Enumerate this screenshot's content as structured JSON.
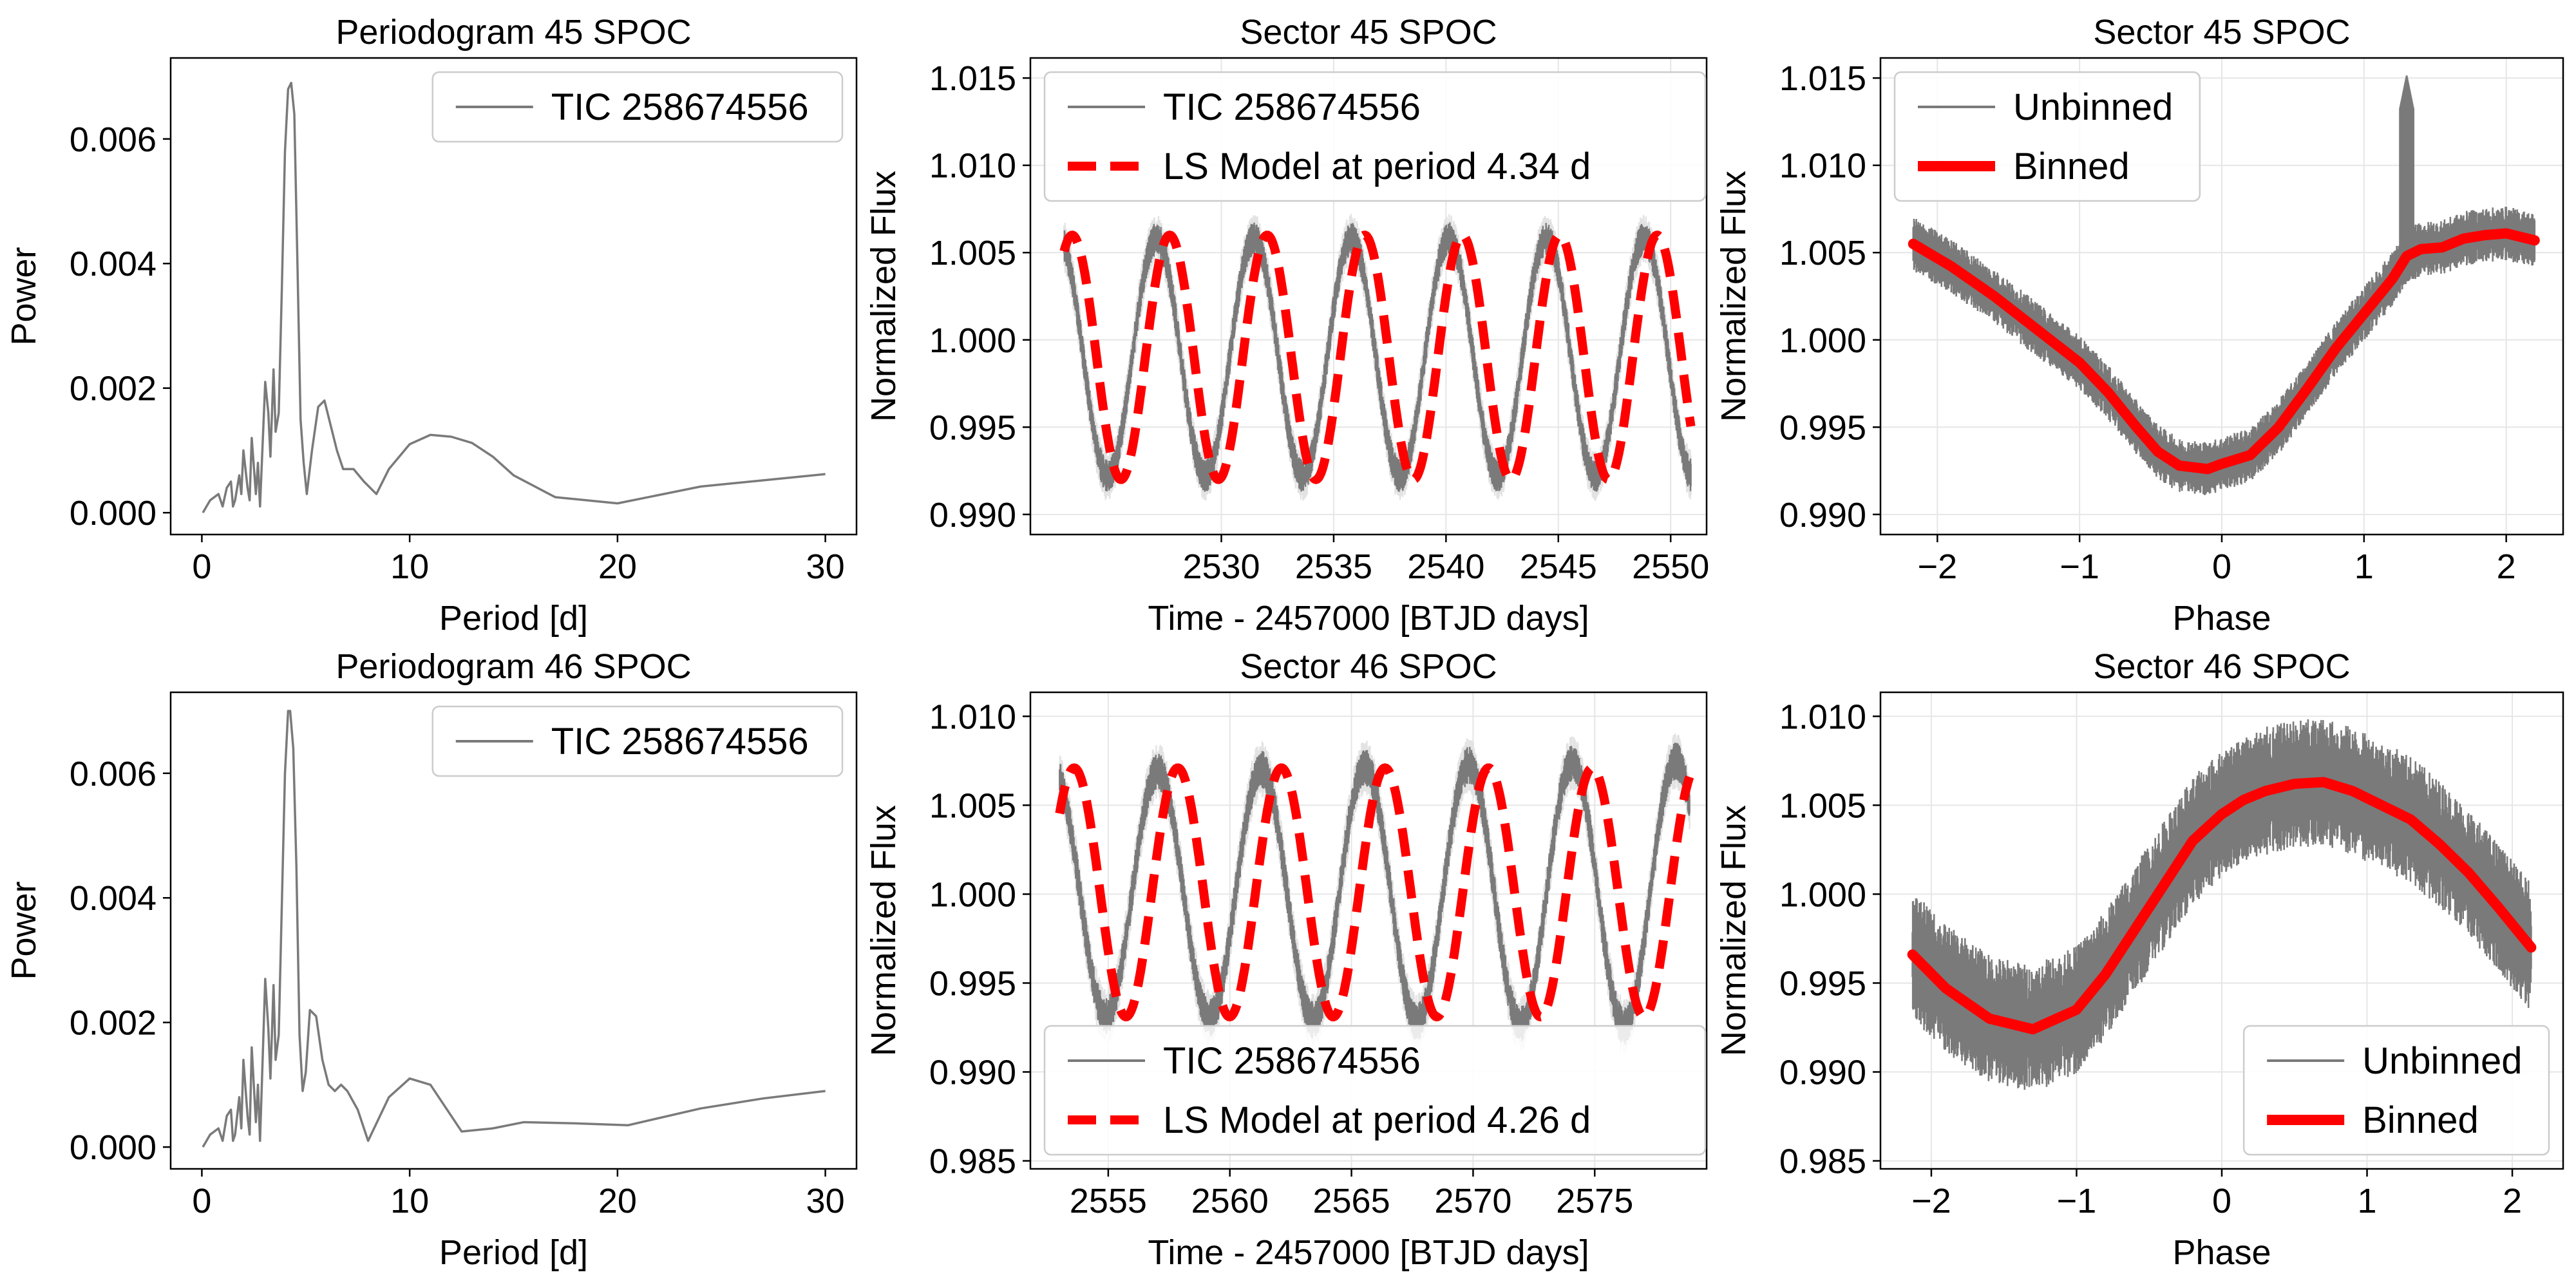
{
  "figure": {
    "title_note": "",
    "colors": {
      "curve": "#7a7a7a",
      "model": "#ff0000",
      "grid": "#e6e6e6",
      "axis": "#000000",
      "legend_border": "#cccccc"
    }
  },
  "chart_data": [
    {
      "id": "p1",
      "type": "line",
      "title": "Periodogram 45 SPOC",
      "xlabel": "Period [d]",
      "ylabel": "Power",
      "xlim": [
        -1.5,
        31.5
      ],
      "ylim": [
        -0.00035,
        0.0073
      ],
      "xticks": [
        0,
        10,
        20,
        30
      ],
      "yticks": [
        0.0,
        0.002,
        0.004,
        0.006
      ],
      "ytick_decimals": 3,
      "grid": false,
      "legend": {
        "position": "top-right",
        "entries": [
          {
            "label": "TIC 258674556",
            "style": "gray-thin"
          }
        ]
      },
      "series": [
        {
          "name": "TIC 258674556",
          "style": "gray-thin",
          "periodogram": {
            "peak_period": 4.34,
            "peak_power": 0.0069,
            "noise": 0.0002,
            "features": [
              [
                1.4,
                0.00045
              ],
              [
                1.8,
                0.0005
              ],
              [
                2.2,
                0.001
              ],
              [
                2.6,
                0.0012
              ],
              [
                3.05,
                0.0021
              ],
              [
                3.45,
                0.0023
              ],
              [
                3.75,
                0.0016
              ],
              [
                5.9,
                0.0018
              ],
              [
                7.3,
                0.0007
              ],
              [
                11.5,
                0.00125
              ],
              [
                12.5,
                0.0012
              ]
            ],
            "x": [
              0.05,
              0.4,
              0.8,
              1.0,
              1.2,
              1.4,
              1.5,
              1.6,
              1.8,
              1.9,
              2.0,
              2.2,
              2.3,
              2.4,
              2.6,
              2.7,
              2.8,
              3.05,
              3.2,
              3.3,
              3.45,
              3.55,
              3.7,
              3.85,
              4.0,
              4.15,
              4.3,
              4.45,
              4.6,
              4.75,
              4.9,
              5.05,
              5.3,
              5.6,
              5.9,
              6.2,
              6.5,
              6.8,
              7.3,
              7.8,
              8.4,
              9.0,
              10.0,
              11.0,
              12.0,
              13.0,
              14.0,
              15.0,
              17.0,
              20.0,
              24.0,
              27.0,
              30.0
            ],
            "y": [
              0.0,
              0.0002,
              0.0003,
              0.0001,
              0.0004,
              0.0005,
              0.0001,
              0.0002,
              0.0006,
              0.0003,
              0.001,
              0.0004,
              0.0002,
              0.0012,
              0.0003,
              0.0008,
              0.0001,
              0.0021,
              0.0016,
              0.0009,
              0.0023,
              0.0013,
              0.0016,
              0.0036,
              0.0058,
              0.0068,
              0.0069,
              0.0064,
              0.004,
              0.0015,
              0.0008,
              0.0003,
              0.001,
              0.0017,
              0.0018,
              0.0014,
              0.001,
              0.0007,
              0.0007,
              0.0005,
              0.0003,
              0.0007,
              0.0011,
              0.00125,
              0.00122,
              0.00112,
              0.0009,
              0.0006,
              0.00025,
              0.00015,
              0.00042,
              0.00052,
              0.00062
            ]
          }
        }
      ]
    },
    {
      "id": "p2",
      "type": "line",
      "title": "Sector 45 SPOC",
      "xlabel": "Time - 2457000 [BTJD days]",
      "ylabel": "Normalized Flux",
      "xlim": [
        2521.5,
        2551.6
      ],
      "ylim": [
        0.98885,
        1.01615
      ],
      "xticks": [
        2530,
        2535,
        2540,
        2545,
        2550
      ],
      "yticks": [
        0.99,
        0.995,
        1.0,
        1.005,
        1.01,
        1.015
      ],
      "ytick_decimals": 3,
      "grid": true,
      "legend": {
        "position": "top-left",
        "entries": [
          {
            "label": "TIC 258674556",
            "style": "gray-thin"
          },
          {
            "label": "LS Model at period 4.34 d",
            "style": "red-dashed"
          }
        ]
      },
      "series": [
        {
          "name": "TIC 258674556",
          "style": "gray-band",
          "band": {
            "x_start": 2523.0,
            "x_end": 2550.9,
            "period": 4.34,
            "center": 0.999,
            "amplitude": 0.0068,
            "noise": 0.0009
          }
        },
        {
          "name": "LS Model at period 4.34 d",
          "style": "red-dashed",
          "model": {
            "x_start": 2523.0,
            "x_end": 2550.9,
            "period": 4.34,
            "center": 0.999,
            "amplitude": 0.007,
            "first_peak": 2527.7
          }
        }
      ]
    },
    {
      "id": "p3",
      "type": "line",
      "title": "Sector 45 SPOC",
      "xlabel": "Phase",
      "ylabel": "Normalized Flux",
      "xlim": [
        -2.4,
        2.4
      ],
      "ylim": [
        0.98885,
        1.01615
      ],
      "xticks": [
        -2,
        -1,
        0,
        1,
        2
      ],
      "yticks": [
        0.99,
        0.995,
        1.0,
        1.005,
        1.01,
        1.015
      ],
      "ytick_decimals": 3,
      "grid": true,
      "legend": {
        "position": "top-left",
        "entries": [
          {
            "label": "Unbinned",
            "style": "gray-thin"
          },
          {
            "label": "Binned",
            "style": "red-thick"
          }
        ]
      },
      "series": [
        {
          "name": "Unbinned",
          "style": "gray-band",
          "binned_ref": true,
          "noise": 0.0013,
          "spike_at": 1.3,
          "spike_to": 1.0152
        },
        {
          "name": "Binned",
          "style": "red-thick",
          "x": [
            -2.17,
            -1.9,
            -1.6,
            -1.3,
            -1.0,
            -0.8,
            -0.6,
            -0.45,
            -0.3,
            -0.1,
            0.0,
            0.2,
            0.4,
            0.6,
            0.8,
            1.0,
            1.2,
            1.3,
            1.4,
            1.55,
            1.7,
            1.85,
            2.0,
            2.2
          ],
          "y": [
            1.0055,
            1.0042,
            1.0025,
            1.0006,
            0.9987,
            0.997,
            0.995,
            0.9936,
            0.9928,
            0.9926,
            0.9929,
            0.9934,
            0.995,
            0.9972,
            0.9995,
            1.0015,
            1.0035,
            1.0048,
            1.0052,
            1.0053,
            1.0058,
            1.006,
            1.0061,
            1.0057
          ]
        }
      ]
    },
    {
      "id": "p4",
      "type": "line",
      "title": "Periodogram 46 SPOC",
      "xlabel": "Period [d]",
      "ylabel": "Power",
      "xlim": [
        -1.5,
        31.5
      ],
      "ylim": [
        -0.00035,
        0.0073
      ],
      "xticks": [
        0,
        10,
        20,
        30
      ],
      "yticks": [
        0.0,
        0.002,
        0.004,
        0.006
      ],
      "ytick_decimals": 3,
      "grid": false,
      "legend": {
        "position": "top-right",
        "entries": [
          {
            "label": "TIC 258674556",
            "style": "gray-thin"
          }
        ]
      },
      "series": [
        {
          "name": "TIC 258674556",
          "style": "gray-thin",
          "periodogram": {
            "x": [
              0.05,
              0.4,
              0.8,
              1.0,
              1.2,
              1.4,
              1.5,
              1.6,
              1.8,
              1.9,
              2.0,
              2.2,
              2.3,
              2.4,
              2.6,
              2.7,
              2.8,
              3.05,
              3.2,
              3.3,
              3.45,
              3.55,
              3.7,
              3.85,
              4.0,
              4.15,
              4.25,
              4.4,
              4.55,
              4.7,
              4.85,
              5.0,
              5.2,
              5.5,
              5.8,
              6.1,
              6.4,
              6.7,
              7.0,
              7.5,
              8.0,
              9.0,
              10.0,
              11.0,
              12.5,
              14.0,
              15.5,
              18.0,
              20.5,
              24.0,
              27.0,
              30.0
            ],
            "y": [
              0.0,
              0.0002,
              0.0003,
              0.0001,
              0.0005,
              0.0006,
              0.0001,
              0.0002,
              0.0008,
              0.0003,
              0.0014,
              0.0005,
              0.0002,
              0.0016,
              0.0004,
              0.001,
              0.0001,
              0.0027,
              0.0019,
              0.0011,
              0.0026,
              0.0014,
              0.0018,
              0.0039,
              0.006,
              0.007,
              0.007,
              0.0064,
              0.0045,
              0.0018,
              0.0009,
              0.0012,
              0.0022,
              0.0021,
              0.0014,
              0.001,
              0.0009,
              0.001,
              0.0009,
              0.0006,
              0.0001,
              0.0008,
              0.0011,
              0.001,
              0.00025,
              0.0003,
              0.0004,
              0.00038,
              0.00035,
              0.00062,
              0.00078,
              0.0009
            ]
          }
        }
      ]
    },
    {
      "id": "p5",
      "type": "line",
      "title": "Sector 46 SPOC",
      "xlabel": "Time - 2457000 [BTJD days]",
      "ylabel": "Normalized Flux",
      "xlim": [
        2551.8,
        2579.6
      ],
      "ylim": [
        0.98455,
        1.01135
      ],
      "xticks": [
        2555,
        2560,
        2565,
        2570,
        2575
      ],
      "yticks": [
        0.985,
        0.99,
        0.995,
        1.0,
        1.005,
        1.01
      ],
      "ytick_decimals": 3,
      "grid": true,
      "legend": {
        "position": "bottom-left",
        "entries": [
          {
            "label": "TIC 258674556",
            "style": "gray-thin"
          },
          {
            "label": "LS Model at period 4.26 d",
            "style": "red-dashed"
          }
        ]
      },
      "series": [
        {
          "name": "TIC 258674556",
          "style": "gray-band",
          "band": {
            "x_start": 2553.0,
            "x_end": 2578.9,
            "period": 4.26,
            "center": 1.0,
            "amplitude": 0.0068,
            "noise": 0.001,
            "growth": 0.0007
          }
        },
        {
          "name": "LS Model at period 4.26 d",
          "style": "red-dashed",
          "model": {
            "x_start": 2553.0,
            "x_end": 2578.9,
            "period": 4.26,
            "center": 1.0001,
            "amplitude": 0.007,
            "first_peak": 2553.6
          }
        }
      ]
    },
    {
      "id": "p6",
      "type": "line",
      "title": "Sector 46 SPOC",
      "xlabel": "Phase",
      "ylabel": "Normalized Flux",
      "xlim": [
        -2.35,
        2.35
      ],
      "ylim": [
        0.98455,
        1.01135
      ],
      "xticks": [
        -2,
        -1,
        0,
        1,
        2
      ],
      "yticks": [
        0.985,
        0.99,
        0.995,
        1.0,
        1.005,
        1.01
      ],
      "ytick_decimals": 3,
      "grid": true,
      "legend": {
        "position": "bottom-right",
        "entries": [
          {
            "label": "Unbinned",
            "style": "gray-thin"
          },
          {
            "label": "Binned",
            "style": "red-thick"
          }
        ]
      },
      "series": [
        {
          "name": "Unbinned",
          "style": "gray-band",
          "binned_ref": true,
          "noise": 0.003
        },
        {
          "name": "Binned",
          "style": "red-thick",
          "x": [
            -2.13,
            -1.9,
            -1.6,
            -1.3,
            -1.0,
            -0.8,
            -0.6,
            -0.4,
            -0.2,
            0.0,
            0.15,
            0.3,
            0.5,
            0.7,
            0.9,
            1.1,
            1.3,
            1.5,
            1.7,
            1.9,
            2.13
          ],
          "y": [
            0.9966,
            0.9947,
            0.993,
            0.9924,
            0.9935,
            0.9955,
            0.998,
            1.0005,
            1.003,
            1.0045,
            1.0053,
            1.0058,
            1.0062,
            1.0063,
            1.0058,
            1.005,
            1.0042,
            1.0028,
            1.0012,
            0.9993,
            0.997
          ]
        }
      ]
    }
  ]
}
